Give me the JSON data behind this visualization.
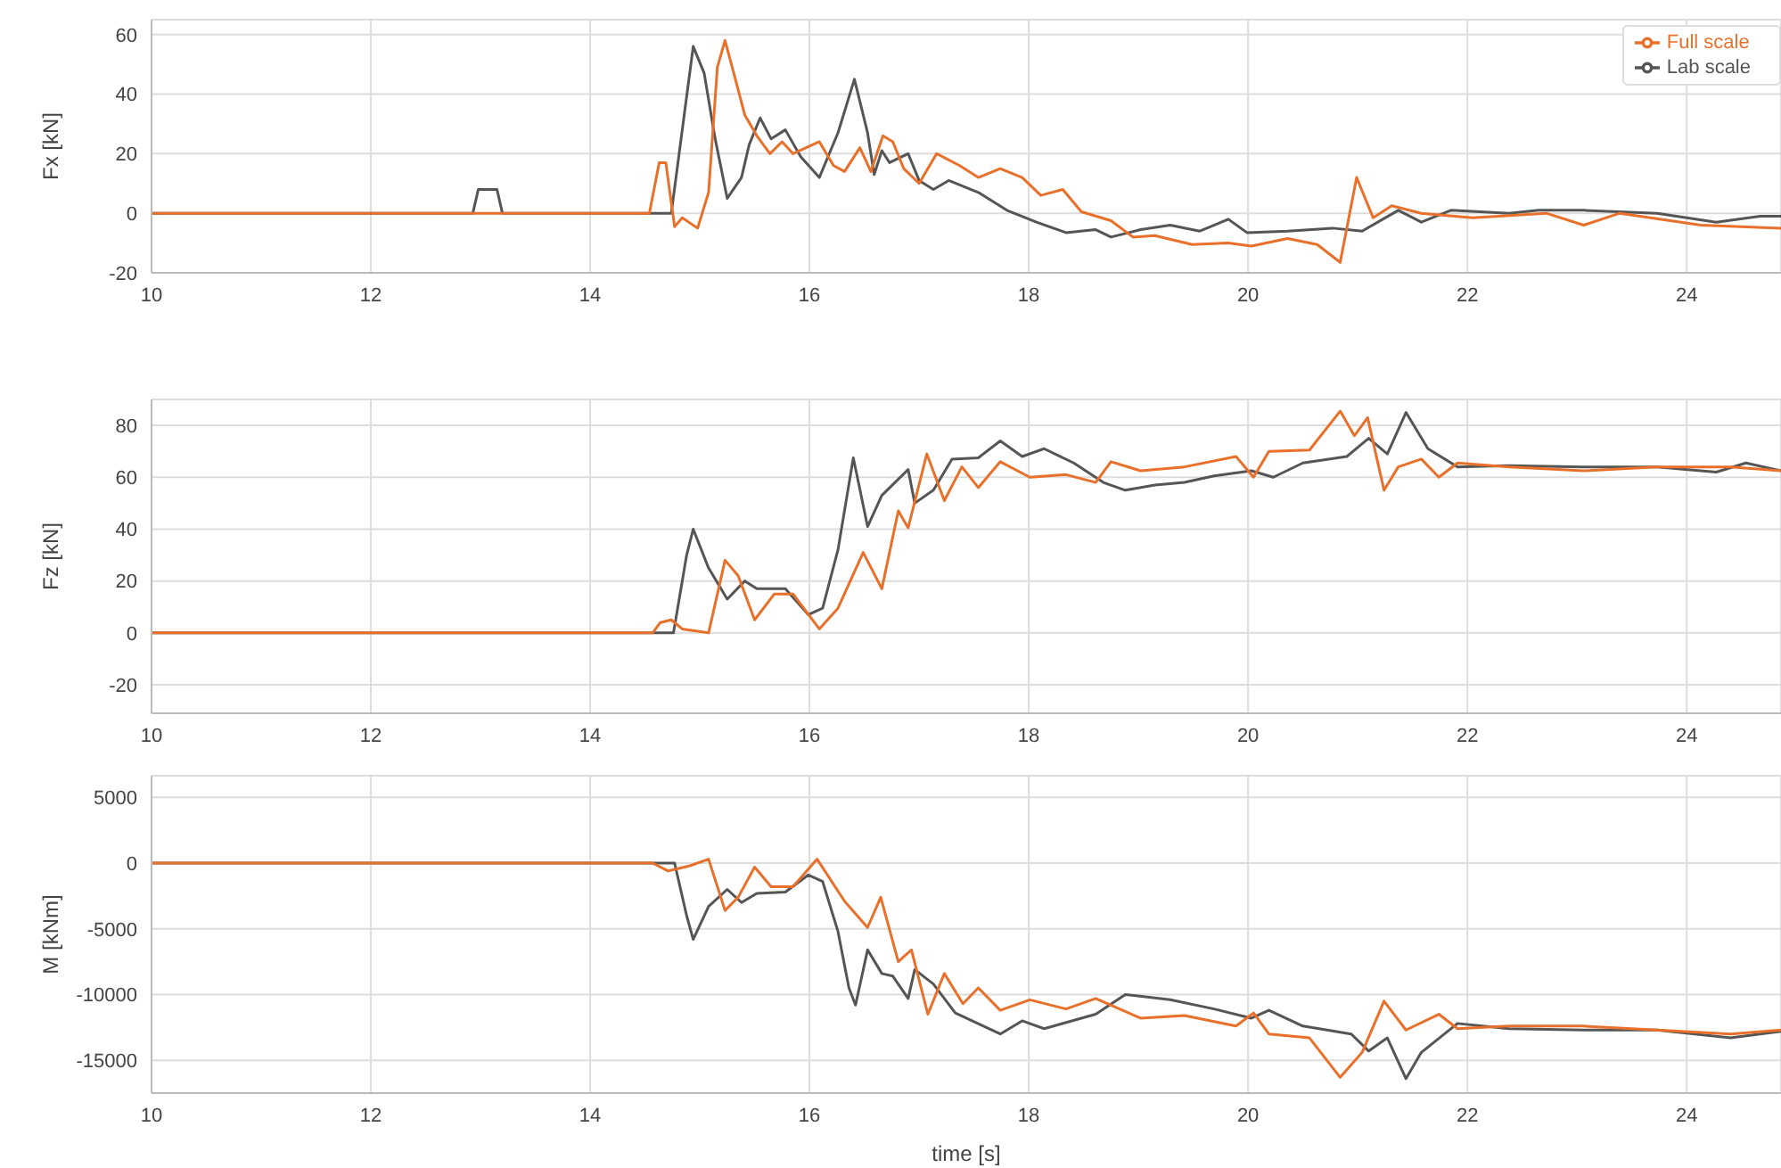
{
  "chart_data": [
    {
      "type": "line",
      "ylabel": "Fx [kN]",
      "xlim": [
        10,
        24.86
      ],
      "xticks": [
        10,
        12,
        14,
        16,
        18,
        20,
        22,
        24
      ],
      "ylim": [
        -20,
        65
      ],
      "yticks": [
        -20,
        0,
        20,
        40,
        60
      ],
      "grid": true,
      "legend": "top right",
      "series": [
        {
          "name": "Lab scale",
          "color": "#555555",
          "x": [
            10,
            12.93,
            12.98,
            13.15,
            13.2,
            14.74,
            14.94,
            15.04,
            15.14,
            15.25,
            15.38,
            15.45,
            15.55,
            15.65,
            15.78,
            15.92,
            16.09,
            16.26,
            16.41,
            16.53,
            16.59,
            16.66,
            16.73,
            16.9,
            17.0,
            17.13,
            17.27,
            17.54,
            17.8,
            18.07,
            18.34,
            18.61,
            18.75,
            19.02,
            19.29,
            19.56,
            19.82,
            19.99,
            20.36,
            20.77,
            21.04,
            21.37,
            21.58,
            21.85,
            22.38,
            22.65,
            23.06,
            23.73,
            24.27,
            24.67,
            24.86
          ],
          "values": [
            0,
            0,
            8,
            8,
            0,
            0,
            56,
            47,
            25,
            5,
            12,
            23,
            32,
            25,
            28,
            19,
            12,
            27,
            45,
            27,
            13,
            21,
            17,
            20,
            11,
            8,
            11,
            7,
            1,
            -3,
            -6.5,
            -5.5,
            -8,
            -5.5,
            -4,
            -6,
            -2,
            -6.5,
            -6,
            -5,
            -6,
            1,
            -3,
            1,
            0,
            1,
            1,
            0,
            -3,
            -1,
            -1
          ]
        },
        {
          "name": "Full scale",
          "color": "#e8702a",
          "x": [
            10,
            14.54,
            14.63,
            14.69,
            14.77,
            14.84,
            14.98,
            15.08,
            15.16,
            15.23,
            15.31,
            15.41,
            15.52,
            15.64,
            15.75,
            15.85,
            16.09,
            16.22,
            16.32,
            16.46,
            16.56,
            16.67,
            16.76,
            16.86,
            17.0,
            17.16,
            17.37,
            17.54,
            17.74,
            17.94,
            18.11,
            18.31,
            18.48,
            18.75,
            18.95,
            19.15,
            19.49,
            19.82,
            20.03,
            20.36,
            20.63,
            20.84,
            20.99,
            21.14,
            21.31,
            21.58,
            22.05,
            22.72,
            23.06,
            23.39,
            24.13,
            24.86
          ],
          "values": [
            0,
            0,
            17,
            17,
            -4.5,
            -1.5,
            -5,
            7,
            49,
            58,
            47,
            33,
            26,
            20,
            24,
            20,
            24,
            16,
            14,
            22,
            14,
            26,
            24,
            15,
            10,
            20,
            16,
            12,
            15,
            12,
            6,
            8,
            0.5,
            -2.5,
            -8,
            -7.5,
            -10.5,
            -10,
            -11,
            -8.5,
            -10.5,
            -16.5,
            12,
            -1.5,
            2.5,
            0,
            -1.5,
            0,
            -4,
            0,
            -4,
            -5
          ]
        }
      ]
    },
    {
      "type": "line",
      "ylabel": "Fz [kN]",
      "xlim": [
        10,
        24.86
      ],
      "xticks": [
        10,
        12,
        14,
        16,
        18,
        20,
        22,
        24
      ],
      "ylim": [
        -31,
        90
      ],
      "yticks": [
        -20,
        0,
        20,
        40,
        60,
        80
      ],
      "grid": true,
      "series": [
        {
          "color": "#555555",
          "x": [
            10,
            14.76,
            14.88,
            14.94,
            15.08,
            15.25,
            15.41,
            15.52,
            15.78,
            15.99,
            16.12,
            16.26,
            16.4,
            16.53,
            16.66,
            16.78,
            16.9,
            16.96,
            17.13,
            17.3,
            17.54,
            17.74,
            17.94,
            18.14,
            18.41,
            18.68,
            18.88,
            19.15,
            19.42,
            19.69,
            20.03,
            20.23,
            20.5,
            20.9,
            21.1,
            21.27,
            21.44,
            21.64,
            21.91,
            22.38,
            23.06,
            23.73,
            24.27,
            24.54,
            24.86
          ],
          "values": [
            0,
            0,
            30,
            40,
            25,
            13,
            20,
            17,
            17,
            7,
            9.5,
            32,
            67.5,
            41,
            53,
            58,
            63,
            50,
            55,
            67,
            67.5,
            74,
            68,
            71,
            65.5,
            58,
            55,
            57,
            58,
            60.5,
            62.5,
            60,
            65.5,
            68,
            75,
            69,
            85,
            71,
            64,
            64.5,
            64,
            64,
            62,
            65.5,
            62.5
          ]
        },
        {
          "color": "#e8702a",
          "x": [
            10,
            14.57,
            14.64,
            14.74,
            14.84,
            15.08,
            15.23,
            15.35,
            15.5,
            15.68,
            15.85,
            16.09,
            16.26,
            16.49,
            16.66,
            16.81,
            16.9,
            17.07,
            17.23,
            17.39,
            17.54,
            17.74,
            18.01,
            18.34,
            18.61,
            18.75,
            19.02,
            19.42,
            19.89,
            20.05,
            20.19,
            20.56,
            20.84,
            20.97,
            21.09,
            21.24,
            21.37,
            21.58,
            21.74,
            21.91,
            22.38,
            23.06,
            23.73,
            24.4,
            24.86
          ],
          "values": [
            0,
            0,
            4,
            5,
            1.5,
            0,
            28,
            22,
            5,
            15,
            15,
            1.5,
            9.5,
            31,
            17,
            47,
            40.5,
            69,
            51,
            64,
            56,
            66,
            60,
            61,
            58,
            66,
            62.5,
            64,
            68,
            60,
            70,
            70.5,
            85.5,
            76,
            83,
            55,
            64,
            67,
            60,
            65.5,
            64,
            62.5,
            64,
            64,
            62.5
          ]
        }
      ]
    },
    {
      "type": "line",
      "ylabel": "M [kNm]",
      "xlabel": "time [s]",
      "xlim": [
        10,
        24.86
      ],
      "xticks": [
        10,
        12,
        14,
        16,
        18,
        20,
        22,
        24
      ],
      "ylim": [
        -17500,
        6650
      ],
      "yticks": [
        -15000,
        -10000,
        -5000,
        0,
        5000
      ],
      "grid": true,
      "series": [
        {
          "color": "#555555",
          "x": [
            10,
            14.77,
            14.88,
            14.94,
            15.08,
            15.25,
            15.38,
            15.52,
            15.78,
            15.99,
            16.12,
            16.26,
            16.36,
            16.42,
            16.53,
            16.66,
            16.76,
            16.9,
            16.96,
            17.13,
            17.33,
            17.74,
            17.94,
            18.14,
            18.61,
            18.88,
            19.29,
            19.69,
            20.03,
            20.19,
            20.5,
            20.94,
            21.1,
            21.27,
            21.44,
            21.58,
            21.91,
            22.38,
            23.06,
            23.73,
            24.4,
            24.86
          ],
          "values": [
            0,
            0,
            -4000,
            -5800,
            -3300,
            -2000,
            -3000,
            -2300,
            -2200,
            -900,
            -1400,
            -5200,
            -9500,
            -10800,
            -6600,
            -8400,
            -8600,
            -10300,
            -8100,
            -9200,
            -11400,
            -13000,
            -12000,
            -12600,
            -11500,
            -10000,
            -10400,
            -11100,
            -11800,
            -11200,
            -12400,
            -13000,
            -14300,
            -13300,
            -16400,
            -14400,
            -12200,
            -12600,
            -12700,
            -12700,
            -13300,
            -12800
          ]
        },
        {
          "color": "#e8702a",
          "x": [
            10,
            14.57,
            14.71,
            14.91,
            15.08,
            15.23,
            15.35,
            15.5,
            15.65,
            15.85,
            16.07,
            16.32,
            16.53,
            16.65,
            16.81,
            16.93,
            17.08,
            17.23,
            17.4,
            17.54,
            17.74,
            18.01,
            18.34,
            18.61,
            19.02,
            19.42,
            19.89,
            20.05,
            20.19,
            20.56,
            20.84,
            21.04,
            21.24,
            21.44,
            21.74,
            21.91,
            22.38,
            23.06,
            23.73,
            24.4,
            24.86
          ],
          "values": [
            0,
            0,
            -600,
            -200,
            300,
            -3600,
            -2600,
            -300,
            -1800,
            -1800,
            300,
            -2900,
            -4900,
            -2600,
            -7500,
            -6600,
            -11500,
            -8400,
            -10700,
            -9500,
            -11200,
            -10400,
            -11100,
            -10300,
            -11800,
            -11600,
            -12400,
            -11400,
            -13000,
            -13300,
            -16300,
            -14400,
            -10500,
            -12700,
            -11500,
            -12600,
            -12400,
            -12400,
            -12700,
            -13000,
            -12700
          ]
        }
      ]
    }
  ]
}
